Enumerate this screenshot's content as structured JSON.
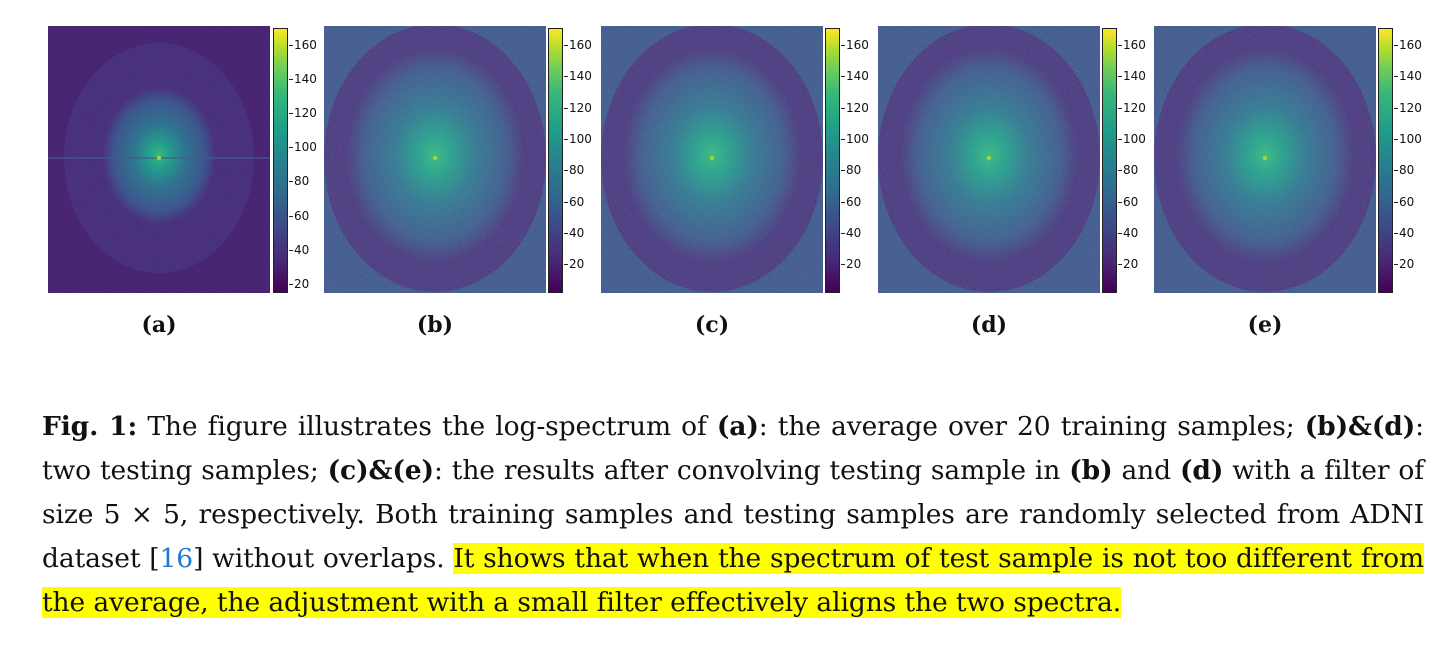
{
  "panels": [
    {
      "label": "(a)"
    },
    {
      "label": "(b)"
    },
    {
      "label": "(c)"
    },
    {
      "label": "(d)"
    },
    {
      "label": "(e)"
    }
  ],
  "colorbar": {
    "colormap": "viridis",
    "ticks_a": [
      "160",
      "140",
      "120",
      "100",
      "80",
      "60",
      "40",
      "20"
    ],
    "ticks_other": [
      "160",
      "140",
      "120",
      "100",
      "80",
      "60",
      "40",
      "20"
    ]
  },
  "caption": {
    "fig": "Fig. 1:",
    "t1": " The figure illustrates the log-spectrum of ",
    "a": "(a)",
    "t2": ": the average over 20 training samples; ",
    "bd1": "(b)&(d)",
    "t3": ": two testing samples; ",
    "ce": "(c)&(e)",
    "t4": ": the results after convolving testing sample in ",
    "b": "(b)",
    "t5": " and ",
    "d": "(d)",
    "t6": " with a filter of size 5 × 5, respectively. Both training samples and testing samples are randomly selected from ADNI dataset [",
    "cite": "16",
    "t7": "] without overlaps. ",
    "highlight": "It shows that when the spectrum of test sample is not too different from the average, the adjustment with a small filter effectively aligns the two spectra."
  },
  "colors": {
    "highlight": "#ffff00",
    "citation": "#1f77d4"
  }
}
